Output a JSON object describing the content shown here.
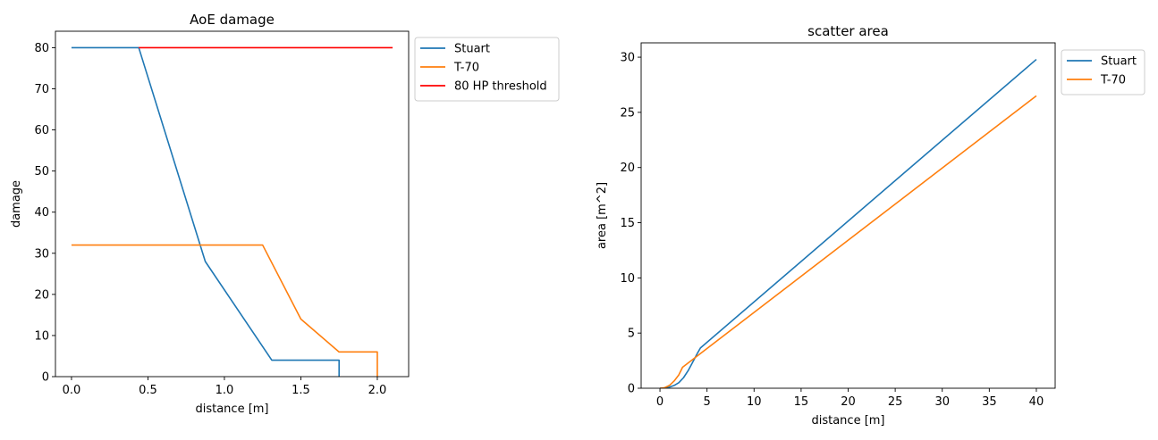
{
  "chart_data": [
    {
      "type": "line",
      "title": "AoE damage",
      "xlabel": "distance [m]",
      "ylabel": "damage",
      "xlim": [
        -0.105,
        2.205
      ],
      "ylim": [
        0,
        84
      ],
      "xticks": [
        0.0,
        0.5,
        1.0,
        1.5,
        2.0
      ],
      "xtick_labels": [
        "0.0",
        "0.5",
        "1.0",
        "1.5",
        "2.0"
      ],
      "yticks": [
        0,
        10,
        20,
        30,
        40,
        50,
        60,
        70,
        80
      ],
      "ytick_labels": [
        "0",
        "10",
        "20",
        "30",
        "40",
        "50",
        "60",
        "70",
        "80"
      ],
      "grid": false,
      "legend_position": "outside upper right",
      "series": [
        {
          "name": "Stuart",
          "color": "#1f77b4",
          "x": [
            0.0,
            0.44,
            0.875,
            1.31,
            1.75,
            1.75
          ],
          "y": [
            80,
            80,
            28,
            4,
            4,
            0
          ]
        },
        {
          "name": "T-70",
          "color": "#ff7f0e",
          "x": [
            0.0,
            1.25,
            1.5,
            1.75,
            2.0,
            2.0
          ],
          "y": [
            32,
            32,
            14,
            6,
            6,
            0
          ]
        },
        {
          "name": "80 HP threshold",
          "color": "#ff0000",
          "x": [
            0.44,
            2.1
          ],
          "y": [
            80,
            80
          ]
        }
      ]
    },
    {
      "type": "line",
      "title": "scatter area",
      "xlabel": "distance [m]",
      "ylabel": "area [m^2]",
      "xlim": [
        -2.0,
        42.0
      ],
      "ylim": [
        0,
        31.3
      ],
      "xticks": [
        0,
        5,
        10,
        15,
        20,
        25,
        30,
        35,
        40
      ],
      "xtick_labels": [
        "0",
        "5",
        "10",
        "15",
        "20",
        "25",
        "30",
        "35",
        "40"
      ],
      "yticks": [
        0,
        5,
        10,
        15,
        20,
        25,
        30
      ],
      "ytick_labels": [
        "0",
        "5",
        "10",
        "15",
        "20",
        "25",
        "30"
      ],
      "grid": false,
      "legend_position": "outside upper right",
      "series": [
        {
          "name": "Stuart",
          "color": "#1f77b4",
          "x": [
            0,
            0.5,
            1.0,
            1.5,
            2.0,
            2.5,
            3.0,
            3.5,
            4.0,
            4.3,
            40
          ],
          "y": [
            0,
            0.02,
            0.1,
            0.25,
            0.5,
            0.95,
            1.6,
            2.4,
            3.2,
            3.65,
            29.8
          ]
        },
        {
          "name": "T-70",
          "color": "#ff7f0e",
          "x": [
            0,
            0.5,
            1.0,
            1.5,
            2.0,
            2.4,
            40
          ],
          "y": [
            0,
            0.05,
            0.25,
            0.65,
            1.2,
            1.9,
            26.5
          ]
        }
      ]
    }
  ]
}
